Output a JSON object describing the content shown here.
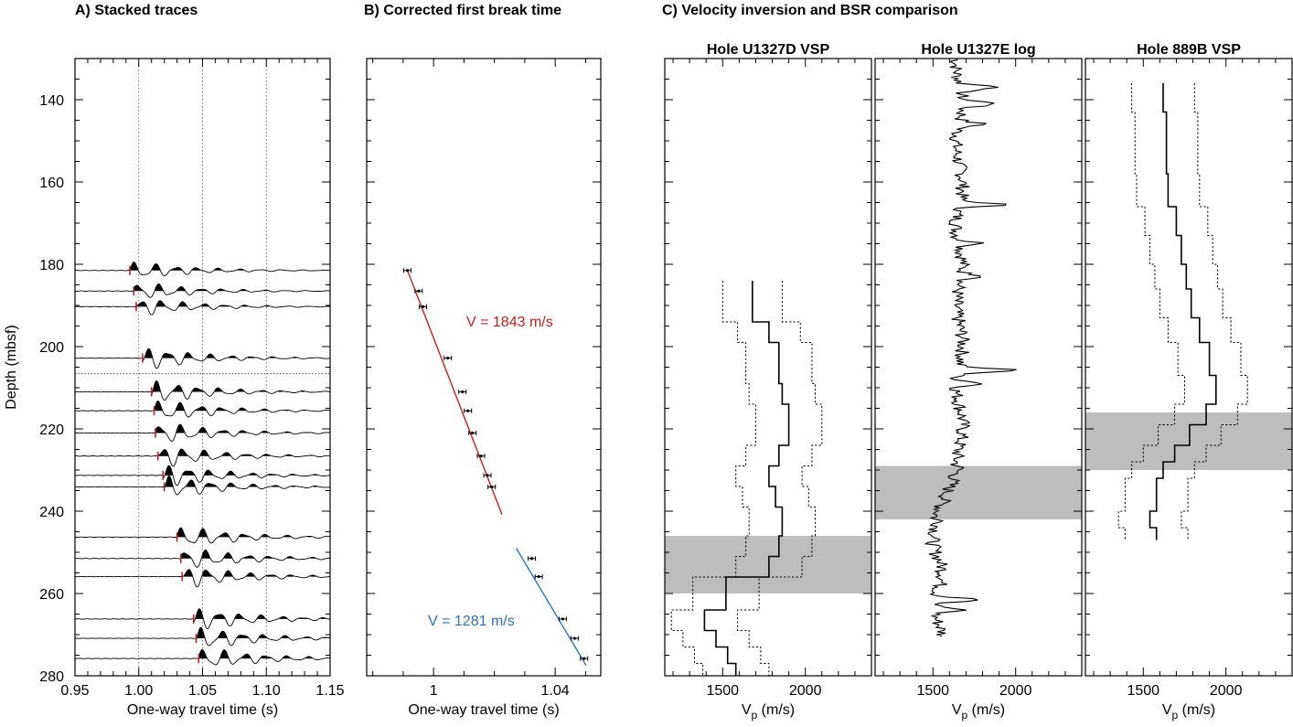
{
  "panel_titles": {
    "a": "A) Stacked traces",
    "b": "B) Corrected first break time",
    "c": "C) Velocity inversion and BSR comparison"
  },
  "chart_data": [
    {
      "panel": "A",
      "type": "line",
      "title": "A) Stacked traces",
      "xlabel": "One-way travel time (s)",
      "ylabel": "Depth (mbsf)",
      "xlim": [
        0.95,
        1.15
      ],
      "ylim": [
        280,
        130
      ],
      "xticks": [
        "0.95",
        "1.00",
        "1.05",
        "1.10",
        "1.15"
      ],
      "yticks": [
        "140",
        "160",
        "180",
        "200",
        "220",
        "240",
        "260",
        "280"
      ],
      "vertical_guides": [
        1.0,
        1.05,
        1.1
      ],
      "traces": [
        {
          "depth": 181.5,
          "first_break": 0.993
        },
        {
          "depth": 186.5,
          "first_break": 0.996
        },
        {
          "depth": 190.3,
          "first_break": 0.998
        },
        {
          "depth": 202.8,
          "first_break": 1.003
        },
        {
          "depth": 211.0,
          "first_break": 1.01
        },
        {
          "depth": 215.6,
          "first_break": 1.012
        },
        {
          "depth": 221.0,
          "first_break": 1.013
        },
        {
          "depth": 226.6,
          "first_break": 1.015
        },
        {
          "depth": 231.3,
          "first_break": 1.019
        },
        {
          "depth": 234.1,
          "first_break": 1.02
        },
        {
          "depth": 246.3,
          "first_break": 1.03
        },
        {
          "depth": 251.5,
          "first_break": 1.033
        },
        {
          "depth": 255.9,
          "first_break": 1.034
        },
        {
          "depth": 266.2,
          "first_break": 1.043
        },
        {
          "depth": 270.9,
          "first_break": 1.045
        },
        {
          "depth": 275.8,
          "first_break": 1.047
        }
      ]
    },
    {
      "panel": "B",
      "type": "scatter",
      "title": "B) Corrected first break time",
      "xlabel": "One-way travel time (s)",
      "xlim": [
        0.978,
        1.055
      ],
      "ylim": [
        280,
        130
      ],
      "xticks": [
        "1",
        "1.04"
      ],
      "points": [
        {
          "t": 0.9914,
          "depth": 181.5
        },
        {
          "t": 0.9951,
          "depth": 186.5
        },
        {
          "t": 0.9965,
          "depth": 190.3
        },
        {
          "t": 1.0047,
          "depth": 202.8
        },
        {
          "t": 1.0095,
          "depth": 211.0
        },
        {
          "t": 1.0113,
          "depth": 215.6
        },
        {
          "t": 1.0128,
          "depth": 221.0
        },
        {
          "t": 1.0156,
          "depth": 226.6
        },
        {
          "t": 1.0177,
          "depth": 231.3
        },
        {
          "t": 1.0191,
          "depth": 234.1
        },
        {
          "t": 1.0323,
          "depth": 251.5
        },
        {
          "t": 1.0346,
          "depth": 255.9
        },
        {
          "t": 1.0425,
          "depth": 266.2
        },
        {
          "t": 1.0464,
          "depth": 270.9
        },
        {
          "t": 1.0495,
          "depth": 275.8
        }
      ],
      "fits": [
        {
          "label": "V = 1843 m/s",
          "color": "#cc1c1c",
          "t0": 0.9914,
          "d0": 181.5,
          "t1": 1.0225,
          "d1": 240.8
        },
        {
          "label": "V = 1281 m/s",
          "color": "#2a72c8",
          "t0": 1.0272,
          "d0": 249.0,
          "t1": 1.0502,
          "d1": 277.5
        }
      ]
    },
    {
      "panel": "C",
      "type": "line",
      "title": "C) Velocity inversion and BSR comparison",
      "subplots": [
        {
          "title": "Hole U1327D VSP",
          "xlabel": "Vp (m/s)",
          "xlim": [
            1150,
            2400
          ],
          "xticks": [
            "1500",
            "2000"
          ],
          "bsr_band": [
            246,
            260
          ],
          "velocity": [
            [
              184,
              1680
            ],
            [
              194,
              1780
            ],
            [
              199,
              1840
            ],
            [
              209,
              1860
            ],
            [
              214,
              1900
            ],
            [
              224,
              1840
            ],
            [
              229,
              1780
            ],
            [
              234,
              1820
            ],
            [
              239,
              1860
            ],
            [
              246,
              1840
            ],
            [
              251,
              1780
            ],
            [
              256,
              1520
            ],
            [
              264,
              1390
            ],
            [
              269,
              1460
            ],
            [
              273,
              1530
            ],
            [
              277,
              1580
            ]
          ],
          "lower_bound": [
            [
              184,
              1500
            ],
            [
              194,
              1590
            ],
            [
              199,
              1640
            ],
            [
              209,
              1660
            ],
            [
              214,
              1700
            ],
            [
              224,
              1640
            ],
            [
              229,
              1580
            ],
            [
              234,
              1620
            ],
            [
              239,
              1660
            ],
            [
              246,
              1640
            ],
            [
              251,
              1580
            ],
            [
              256,
              1320
            ],
            [
              264,
              1190
            ],
            [
              269,
              1260
            ],
            [
              273,
              1330
            ],
            [
              277,
              1380
            ]
          ],
          "upper_bound": [
            [
              184,
              1860
            ],
            [
              194,
              1970
            ],
            [
              199,
              2040
            ],
            [
              209,
              2060
            ],
            [
              214,
              2100
            ],
            [
              224,
              2040
            ],
            [
              229,
              1980
            ],
            [
              234,
              2020
            ],
            [
              239,
              2060
            ],
            [
              246,
              2040
            ],
            [
              251,
              1980
            ],
            [
              256,
              1720
            ],
            [
              264,
              1590
            ],
            [
              269,
              1660
            ],
            [
              273,
              1730
            ],
            [
              277,
              1780
            ]
          ]
        },
        {
          "title": "Hole U1327E log",
          "xlabel": "Vp (m/s)",
          "xlim": [
            1150,
            2400
          ],
          "xticks": [
            "1500",
            "2000"
          ],
          "bsr_band": [
            229,
            242
          ]
        },
        {
          "title": "Hole 889B VSP",
          "xlabel": "Vp (m/s)",
          "xlim": [
            1150,
            2400
          ],
          "xticks": [
            "1500",
            "2000"
          ],
          "bsr_band": [
            216,
            230
          ],
          "velocity": [
            [
              136,
              1620
            ],
            [
              143,
              1640
            ],
            [
              158,
              1650
            ],
            [
              166,
              1700
            ],
            [
              173,
              1730
            ],
            [
              180,
              1760
            ],
            [
              186,
              1790
            ],
            [
              193,
              1840
            ],
            [
              199,
              1900
            ],
            [
              207,
              1940
            ],
            [
              214,
              1880
            ],
            [
              219,
              1780
            ],
            [
              224,
              1690
            ],
            [
              228,
              1620
            ],
            [
              232,
              1580
            ],
            [
              240,
              1540
            ],
            [
              244,
              1580
            ]
          ],
          "lower_bound": [
            [
              136,
              1430
            ],
            [
              143,
              1450
            ],
            [
              158,
              1460
            ],
            [
              166,
              1510
            ],
            [
              173,
              1540
            ],
            [
              180,
              1570
            ],
            [
              186,
              1600
            ],
            [
              193,
              1650
            ],
            [
              199,
              1710
            ],
            [
              207,
              1750
            ],
            [
              214,
              1690
            ],
            [
              219,
              1590
            ],
            [
              224,
              1500
            ],
            [
              228,
              1430
            ],
            [
              232,
              1390
            ],
            [
              240,
              1350
            ],
            [
              244,
              1390
            ]
          ],
          "upper_bound": [
            [
              136,
              1810
            ],
            [
              143,
              1830
            ],
            [
              158,
              1840
            ],
            [
              166,
              1890
            ],
            [
              173,
              1920
            ],
            [
              180,
              1950
            ],
            [
              186,
              1980
            ],
            [
              193,
              2030
            ],
            [
              199,
              2090
            ],
            [
              207,
              2130
            ],
            [
              214,
              2070
            ],
            [
              219,
              1970
            ],
            [
              224,
              1880
            ],
            [
              228,
              1810
            ],
            [
              232,
              1770
            ],
            [
              240,
              1730
            ],
            [
              244,
              1770
            ]
          ]
        }
      ]
    }
  ],
  "colors": {
    "red_fit": "#cc1c1c",
    "blue_fit": "#2a72c8",
    "bsr_band": "#bdbdbd"
  }
}
